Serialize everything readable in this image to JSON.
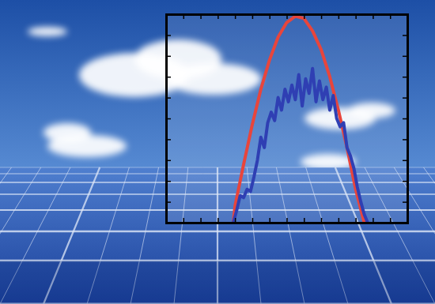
{
  "chart_data": {
    "type": "line",
    "xlim": [
      0,
      14
    ],
    "xticks": [
      0,
      1,
      2,
      3,
      4,
      5,
      6,
      7,
      8,
      9,
      10,
      11,
      12,
      13,
      14
    ],
    "ylim": [
      0,
      10
    ],
    "yticks": [
      0,
      1,
      2,
      3,
      4,
      5,
      6,
      7,
      8,
      9,
      10
    ],
    "tick_labels": false,
    "grid": false,
    "series": [
      {
        "color": "#e8453c",
        "x": [
          3.9,
          4.0,
          4.5,
          5.0,
          5.5,
          6.0,
          6.5,
          7.0,
          7.5,
          8.0,
          8.5,
          9.0,
          9.5,
          10.0,
          10.5,
          11.0,
          11.5
        ],
        "values": [
          0,
          0.8,
          2.8,
          4.7,
          6.4,
          7.8,
          8.9,
          9.6,
          9.9,
          9.8,
          9.2,
          8.3,
          7.0,
          5.4,
          3.6,
          1.6,
          0
        ]
      },
      {
        "color": "#2f3fb3",
        "x": [
          3.9,
          4.1,
          4.3,
          4.5,
          4.7,
          4.9,
          5.1,
          5.3,
          5.5,
          5.7,
          5.9,
          6.1,
          6.3,
          6.5,
          6.7,
          6.9,
          7.1,
          7.3,
          7.5,
          7.7,
          7.9,
          8.1,
          8.3,
          8.5,
          8.7,
          8.9,
          9.1,
          9.3,
          9.5,
          9.7,
          9.9,
          10.1,
          10.3,
          10.5,
          10.7,
          10.9,
          11.1,
          11.3,
          11.5,
          11.7
        ],
        "values": [
          0,
          0.6,
          1.3,
          1.2,
          1.6,
          1.5,
          2.2,
          3.0,
          4.1,
          3.6,
          4.8,
          5.3,
          4.9,
          6.0,
          5.4,
          6.4,
          5.8,
          6.6,
          5.9,
          7.1,
          5.6,
          6.9,
          6.2,
          7.4,
          5.8,
          6.8,
          5.9,
          6.5,
          5.4,
          6.1,
          5.0,
          4.6,
          4.8,
          3.6,
          3.2,
          2.6,
          1.7,
          1.0,
          0.4,
          0
        ]
      }
    ]
  }
}
